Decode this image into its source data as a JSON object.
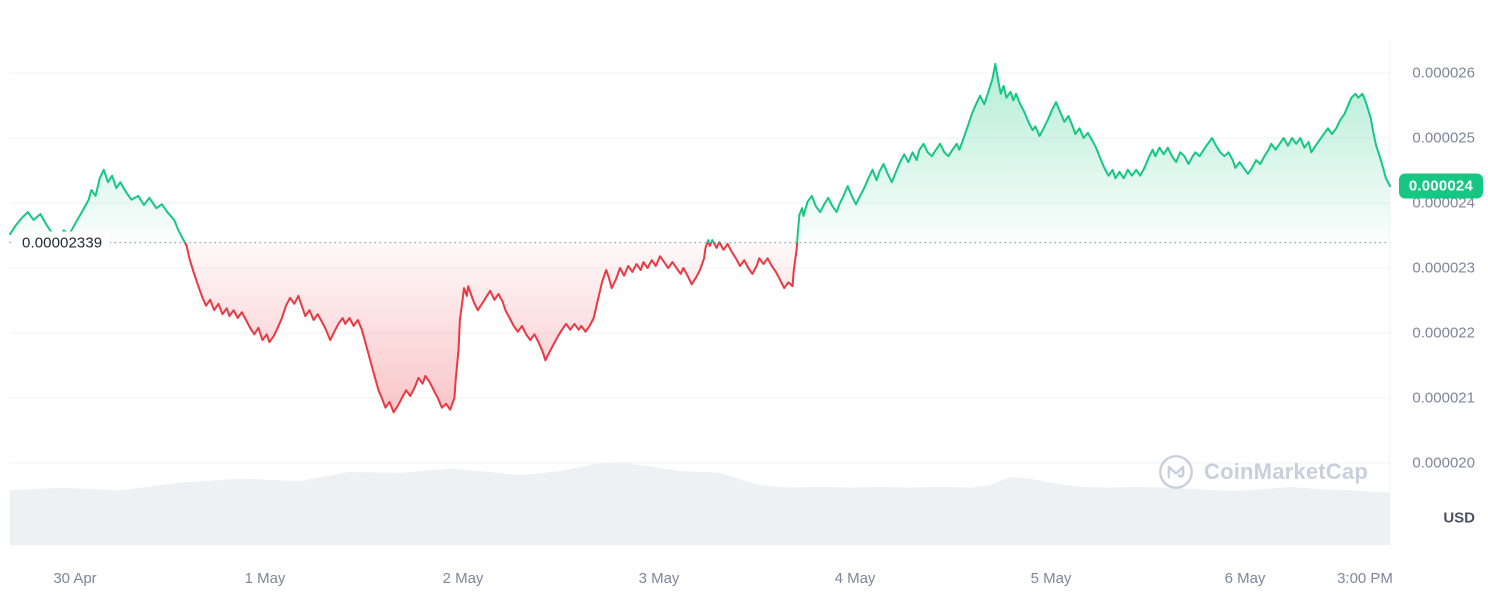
{
  "watermark": {
    "text": "CoinMarketCap"
  },
  "chart_data": {
    "type": "line",
    "currency": "USD",
    "value_scale": 1e-06,
    "ylim": [
      19.9,
      26.4
    ],
    "grid": "horizontal-only",
    "baseline": {
      "value": 23.39,
      "label": "0.00002339"
    },
    "last_price_badge": {
      "label": "0.000024"
    },
    "y_axis": {
      "unit_label": "USD",
      "ticks": [
        {
          "value": 26,
          "label": "0.000026"
        },
        {
          "value": 25,
          "label": "0.000025"
        },
        {
          "value": 24,
          "label": "0.000024"
        },
        {
          "value": 23,
          "label": "0.000023"
        },
        {
          "value": 22,
          "label": "0.000022"
        },
        {
          "value": 21,
          "label": "0.000021"
        },
        {
          "value": 20,
          "label": "0.000020"
        }
      ]
    },
    "x_axis": {
      "ticks": [
        {
          "pos": 0.047,
          "label": "30 Apr"
        },
        {
          "pos": 0.185,
          "label": "1 May"
        },
        {
          "pos": 0.328,
          "label": "2 May"
        },
        {
          "pos": 0.47,
          "label": "3 May"
        },
        {
          "pos": 0.612,
          "label": "4 May"
        },
        {
          "pos": 0.754,
          "label": "5 May"
        },
        {
          "pos": 0.895,
          "label": "6 May"
        },
        {
          "pos": 0.982,
          "label": "3:00 PM"
        }
      ]
    },
    "colors": {
      "up": "#16c784",
      "down": "#ea3943",
      "badge_bg": "#16c784",
      "badge_text": "#ffffff",
      "volume_fill": "#eef0f4",
      "baseline_dots": "#a2abba",
      "grid": "#f0f3f7",
      "axis_text": "#7d8799",
      "watermark": "#c9d0dc"
    },
    "price_points": [
      [
        0.0,
        23.52
      ],
      [
        0.004,
        23.65
      ],
      [
        0.009,
        23.78
      ],
      [
        0.013,
        23.86
      ],
      [
        0.017,
        23.74
      ],
      [
        0.022,
        23.83
      ],
      [
        0.026,
        23.68
      ],
      [
        0.03,
        23.55
      ],
      [
        0.035,
        23.46
      ],
      [
        0.039,
        23.58
      ],
      [
        0.043,
        23.52
      ],
      [
        0.048,
        23.71
      ],
      [
        0.052,
        23.86
      ],
      [
        0.057,
        24.05
      ],
      [
        0.059,
        24.2
      ],
      [
        0.062,
        24.11
      ],
      [
        0.065,
        24.38
      ],
      [
        0.068,
        24.51
      ],
      [
        0.071,
        24.32
      ],
      [
        0.074,
        24.42
      ],
      [
        0.077,
        24.23
      ],
      [
        0.08,
        24.32
      ],
      [
        0.084,
        24.17
      ],
      [
        0.088,
        24.05
      ],
      [
        0.093,
        24.11
      ],
      [
        0.097,
        23.97
      ],
      [
        0.101,
        24.08
      ],
      [
        0.106,
        23.92
      ],
      [
        0.11,
        23.98
      ],
      [
        0.114,
        23.86
      ],
      [
        0.119,
        23.74
      ],
      [
        0.122,
        23.58
      ],
      [
        0.125,
        23.46
      ],
      [
        0.128,
        23.34
      ],
      [
        0.13,
        23.15
      ],
      [
        0.133,
        22.94
      ],
      [
        0.136,
        22.75
      ],
      [
        0.139,
        22.57
      ],
      [
        0.142,
        22.42
      ],
      [
        0.145,
        22.51
      ],
      [
        0.148,
        22.35
      ],
      [
        0.151,
        22.45
      ],
      [
        0.154,
        22.29
      ],
      [
        0.157,
        22.38
      ],
      [
        0.159,
        22.26
      ],
      [
        0.162,
        22.35
      ],
      [
        0.165,
        22.23
      ],
      [
        0.168,
        22.32
      ],
      [
        0.171,
        22.2
      ],
      [
        0.174,
        22.08
      ],
      [
        0.177,
        21.98
      ],
      [
        0.18,
        22.08
      ],
      [
        0.183,
        21.89
      ],
      [
        0.186,
        21.98
      ],
      [
        0.188,
        21.86
      ],
      [
        0.191,
        21.95
      ],
      [
        0.194,
        22.08
      ],
      [
        0.197,
        22.23
      ],
      [
        0.2,
        22.42
      ],
      [
        0.203,
        22.54
      ],
      [
        0.206,
        22.45
      ],
      [
        0.209,
        22.57
      ],
      [
        0.212,
        22.38
      ],
      [
        0.214,
        22.26
      ],
      [
        0.217,
        22.35
      ],
      [
        0.22,
        22.2
      ],
      [
        0.223,
        22.29
      ],
      [
        0.226,
        22.17
      ],
      [
        0.229,
        22.05
      ],
      [
        0.232,
        21.89
      ],
      [
        0.235,
        22.02
      ],
      [
        0.238,
        22.14
      ],
      [
        0.241,
        22.23
      ],
      [
        0.243,
        22.14
      ],
      [
        0.246,
        22.23
      ],
      [
        0.249,
        22.11
      ],
      [
        0.252,
        22.2
      ],
      [
        0.255,
        22.05
      ],
      [
        0.258,
        21.82
      ],
      [
        0.261,
        21.58
      ],
      [
        0.264,
        21.35
      ],
      [
        0.267,
        21.12
      ],
      [
        0.27,
        20.97
      ],
      [
        0.272,
        20.85
      ],
      [
        0.275,
        20.94
      ],
      [
        0.278,
        20.78
      ],
      [
        0.281,
        20.88
      ],
      [
        0.284,
        21.0
      ],
      [
        0.287,
        21.12
      ],
      [
        0.29,
        21.03
      ],
      [
        0.293,
        21.15
      ],
      [
        0.296,
        21.31
      ],
      [
        0.299,
        21.22
      ],
      [
        0.301,
        21.34
      ],
      [
        0.304,
        21.25
      ],
      [
        0.307,
        21.12
      ],
      [
        0.31,
        21.0
      ],
      [
        0.313,
        20.85
      ],
      [
        0.316,
        20.91
      ],
      [
        0.319,
        20.82
      ],
      [
        0.322,
        21.0
      ],
      [
        0.323,
        21.28
      ],
      [
        0.325,
        21.74
      ],
      [
        0.326,
        22.2
      ],
      [
        0.328,
        22.51
      ],
      [
        0.329,
        22.69
      ],
      [
        0.331,
        22.57
      ],
      [
        0.332,
        22.72
      ],
      [
        0.334,
        22.6
      ],
      [
        0.336,
        22.48
      ],
      [
        0.339,
        22.35
      ],
      [
        0.342,
        22.45
      ],
      [
        0.345,
        22.55
      ],
      [
        0.348,
        22.65
      ],
      [
        0.351,
        22.51
      ],
      [
        0.354,
        22.6
      ],
      [
        0.357,
        22.48
      ],
      [
        0.359,
        22.35
      ],
      [
        0.362,
        22.23
      ],
      [
        0.365,
        22.11
      ],
      [
        0.368,
        22.02
      ],
      [
        0.371,
        22.11
      ],
      [
        0.374,
        21.98
      ],
      [
        0.377,
        21.89
      ],
      [
        0.38,
        21.98
      ],
      [
        0.383,
        21.86
      ],
      [
        0.386,
        21.71
      ],
      [
        0.388,
        21.58
      ],
      [
        0.391,
        21.71
      ],
      [
        0.394,
        21.83
      ],
      [
        0.397,
        21.95
      ],
      [
        0.4,
        22.05
      ],
      [
        0.403,
        22.14
      ],
      [
        0.406,
        22.05
      ],
      [
        0.409,
        22.14
      ],
      [
        0.412,
        22.05
      ],
      [
        0.414,
        22.11
      ],
      [
        0.417,
        22.02
      ],
      [
        0.42,
        22.11
      ],
      [
        0.423,
        22.23
      ],
      [
        0.426,
        22.51
      ],
      [
        0.429,
        22.78
      ],
      [
        0.432,
        22.97
      ],
      [
        0.434,
        22.85
      ],
      [
        0.436,
        22.69
      ],
      [
        0.439,
        22.82
      ],
      [
        0.442,
        23.0
      ],
      [
        0.445,
        22.88
      ],
      [
        0.448,
        23.03
      ],
      [
        0.451,
        22.94
      ],
      [
        0.454,
        23.06
      ],
      [
        0.457,
        22.97
      ],
      [
        0.459,
        23.09
      ],
      [
        0.462,
        23.0
      ],
      [
        0.465,
        23.12
      ],
      [
        0.468,
        23.03
      ],
      [
        0.471,
        23.18
      ],
      [
        0.474,
        23.09
      ],
      [
        0.477,
        23.0
      ],
      [
        0.48,
        23.09
      ],
      [
        0.483,
        23.0
      ],
      [
        0.486,
        22.91
      ],
      [
        0.488,
        23.0
      ],
      [
        0.491,
        22.88
      ],
      [
        0.494,
        22.75
      ],
      [
        0.497,
        22.85
      ],
      [
        0.5,
        22.97
      ],
      [
        0.503,
        23.15
      ],
      [
        0.504,
        23.31
      ],
      [
        0.506,
        23.43
      ],
      [
        0.507,
        23.34
      ],
      [
        0.509,
        23.43
      ],
      [
        0.512,
        23.31
      ],
      [
        0.514,
        23.4
      ],
      [
        0.517,
        23.28
      ],
      [
        0.52,
        23.37
      ],
      [
        0.523,
        23.25
      ],
      [
        0.526,
        23.15
      ],
      [
        0.529,
        23.03
      ],
      [
        0.532,
        23.12
      ],
      [
        0.535,
        23.0
      ],
      [
        0.538,
        22.91
      ],
      [
        0.541,
        23.03
      ],
      [
        0.543,
        23.15
      ],
      [
        0.546,
        23.06
      ],
      [
        0.549,
        23.15
      ],
      [
        0.552,
        23.03
      ],
      [
        0.555,
        22.94
      ],
      [
        0.558,
        22.82
      ],
      [
        0.561,
        22.69
      ],
      [
        0.564,
        22.78
      ],
      [
        0.567,
        22.72
      ],
      [
        0.568,
        22.97
      ],
      [
        0.57,
        23.28
      ],
      [
        0.571,
        23.58
      ],
      [
        0.572,
        23.82
      ],
      [
        0.574,
        23.92
      ],
      [
        0.575,
        23.8
      ],
      [
        0.578,
        24.02
      ],
      [
        0.581,
        24.11
      ],
      [
        0.584,
        23.95
      ],
      [
        0.587,
        23.86
      ],
      [
        0.59,
        23.98
      ],
      [
        0.593,
        24.08
      ],
      [
        0.596,
        23.95
      ],
      [
        0.599,
        23.86
      ],
      [
        0.601,
        23.98
      ],
      [
        0.604,
        24.11
      ],
      [
        0.607,
        24.26
      ],
      [
        0.61,
        24.11
      ],
      [
        0.613,
        23.98
      ],
      [
        0.616,
        24.11
      ],
      [
        0.619,
        24.23
      ],
      [
        0.622,
        24.38
      ],
      [
        0.625,
        24.51
      ],
      [
        0.628,
        24.35
      ],
      [
        0.63,
        24.48
      ],
      [
        0.633,
        24.6
      ],
      [
        0.636,
        24.45
      ],
      [
        0.639,
        24.32
      ],
      [
        0.642,
        24.48
      ],
      [
        0.645,
        24.63
      ],
      [
        0.648,
        24.75
      ],
      [
        0.651,
        24.63
      ],
      [
        0.654,
        24.78
      ],
      [
        0.657,
        24.66
      ],
      [
        0.659,
        24.82
      ],
      [
        0.662,
        24.91
      ],
      [
        0.665,
        24.78
      ],
      [
        0.668,
        24.72
      ],
      [
        0.671,
        24.82
      ],
      [
        0.674,
        24.91
      ],
      [
        0.677,
        24.78
      ],
      [
        0.68,
        24.72
      ],
      [
        0.683,
        24.82
      ],
      [
        0.686,
        24.91
      ],
      [
        0.688,
        24.82
      ],
      [
        0.691,
        25.0
      ],
      [
        0.694,
        25.18
      ],
      [
        0.697,
        25.37
      ],
      [
        0.7,
        25.52
      ],
      [
        0.703,
        25.65
      ],
      [
        0.706,
        25.52
      ],
      [
        0.709,
        25.71
      ],
      [
        0.712,
        25.92
      ],
      [
        0.714,
        26.14
      ],
      [
        0.716,
        25.89
      ],
      [
        0.718,
        25.68
      ],
      [
        0.72,
        25.8
      ],
      [
        0.722,
        25.62
      ],
      [
        0.725,
        25.71
      ],
      [
        0.727,
        25.58
      ],
      [
        0.729,
        25.68
      ],
      [
        0.732,
        25.52
      ],
      [
        0.735,
        25.4
      ],
      [
        0.738,
        25.25
      ],
      [
        0.741,
        25.12
      ],
      [
        0.743,
        25.18
      ],
      [
        0.746,
        25.03
      ],
      [
        0.749,
        25.15
      ],
      [
        0.752,
        25.28
      ],
      [
        0.755,
        25.43
      ],
      [
        0.758,
        25.55
      ],
      [
        0.761,
        25.4
      ],
      [
        0.764,
        25.25
      ],
      [
        0.767,
        25.34
      ],
      [
        0.77,
        25.18
      ],
      [
        0.772,
        25.06
      ],
      [
        0.775,
        25.15
      ],
      [
        0.778,
        25.0
      ],
      [
        0.781,
        25.08
      ],
      [
        0.784,
        24.97
      ],
      [
        0.787,
        24.85
      ],
      [
        0.79,
        24.69
      ],
      [
        0.793,
        24.54
      ],
      [
        0.796,
        24.42
      ],
      [
        0.799,
        24.51
      ],
      [
        0.801,
        24.38
      ],
      [
        0.804,
        24.48
      ],
      [
        0.807,
        24.38
      ],
      [
        0.81,
        24.51
      ],
      [
        0.813,
        24.42
      ],
      [
        0.816,
        24.51
      ],
      [
        0.819,
        24.42
      ],
      [
        0.822,
        24.54
      ],
      [
        0.825,
        24.69
      ],
      [
        0.828,
        24.82
      ],
      [
        0.83,
        24.72
      ],
      [
        0.833,
        24.85
      ],
      [
        0.836,
        24.75
      ],
      [
        0.839,
        24.85
      ],
      [
        0.842,
        24.72
      ],
      [
        0.845,
        24.63
      ],
      [
        0.848,
        24.78
      ],
      [
        0.851,
        24.72
      ],
      [
        0.854,
        24.6
      ],
      [
        0.857,
        24.72
      ],
      [
        0.859,
        24.78
      ],
      [
        0.862,
        24.72
      ],
      [
        0.865,
        24.82
      ],
      [
        0.868,
        24.91
      ],
      [
        0.871,
        25.0
      ],
      [
        0.874,
        24.88
      ],
      [
        0.877,
        24.78
      ],
      [
        0.88,
        24.72
      ],
      [
        0.883,
        24.78
      ],
      [
        0.886,
        24.66
      ],
      [
        0.888,
        24.54
      ],
      [
        0.891,
        24.63
      ],
      [
        0.894,
        24.54
      ],
      [
        0.897,
        24.45
      ],
      [
        0.9,
        24.54
      ],
      [
        0.903,
        24.66
      ],
      [
        0.906,
        24.6
      ],
      [
        0.909,
        24.72
      ],
      [
        0.912,
        24.82
      ],
      [
        0.914,
        24.91
      ],
      [
        0.917,
        24.82
      ],
      [
        0.92,
        24.91
      ],
      [
        0.923,
        25.0
      ],
      [
        0.926,
        24.88
      ],
      [
        0.929,
        25.0
      ],
      [
        0.932,
        24.91
      ],
      [
        0.935,
        25.0
      ],
      [
        0.938,
        24.85
      ],
      [
        0.941,
        24.94
      ],
      [
        0.943,
        24.78
      ],
      [
        0.946,
        24.88
      ],
      [
        0.949,
        24.97
      ],
      [
        0.952,
        25.06
      ],
      [
        0.955,
        25.15
      ],
      [
        0.958,
        25.06
      ],
      [
        0.961,
        25.15
      ],
      [
        0.964,
        25.28
      ],
      [
        0.967,
        25.37
      ],
      [
        0.97,
        25.52
      ],
      [
        0.972,
        25.62
      ],
      [
        0.975,
        25.68
      ],
      [
        0.977,
        25.62
      ],
      [
        0.98,
        25.68
      ],
      [
        0.982,
        25.58
      ],
      [
        0.984,
        25.45
      ],
      [
        0.986,
        25.31
      ],
      [
        0.988,
        25.08
      ],
      [
        0.99,
        24.88
      ],
      [
        0.993,
        24.69
      ],
      [
        0.995,
        24.54
      ],
      [
        0.997,
        24.38
      ],
      [
        1.0,
        24.26
      ]
    ],
    "volume_points": [
      [
        0.0,
        0.66
      ],
      [
        0.036,
        0.69
      ],
      [
        0.08,
        0.66
      ],
      [
        0.123,
        0.75
      ],
      [
        0.167,
        0.8
      ],
      [
        0.21,
        0.77
      ],
      [
        0.246,
        0.88
      ],
      [
        0.283,
        0.87
      ],
      [
        0.319,
        0.92
      ],
      [
        0.341,
        0.89
      ],
      [
        0.37,
        0.84
      ],
      [
        0.399,
        0.89
      ],
      [
        0.428,
        0.99
      ],
      [
        0.442,
        1.0
      ],
      [
        0.457,
        0.96
      ],
      [
        0.486,
        0.89
      ],
      [
        0.514,
        0.87
      ],
      [
        0.543,
        0.72
      ],
      [
        0.565,
        0.69
      ],
      [
        0.587,
        0.7
      ],
      [
        0.609,
        0.69
      ],
      [
        0.63,
        0.7
      ],
      [
        0.652,
        0.69
      ],
      [
        0.674,
        0.7
      ],
      [
        0.696,
        0.69
      ],
      [
        0.71,
        0.72
      ],
      [
        0.725,
        0.82
      ],
      [
        0.739,
        0.8
      ],
      [
        0.754,
        0.75
      ],
      [
        0.775,
        0.7
      ],
      [
        0.797,
        0.69
      ],
      [
        0.819,
        0.7
      ],
      [
        0.841,
        0.69
      ],
      [
        0.862,
        0.67
      ],
      [
        0.884,
        0.65
      ],
      [
        0.906,
        0.67
      ],
      [
        0.928,
        0.7
      ],
      [
        0.949,
        0.67
      ],
      [
        0.971,
        0.66
      ],
      [
        1.0,
        0.63
      ]
    ]
  }
}
